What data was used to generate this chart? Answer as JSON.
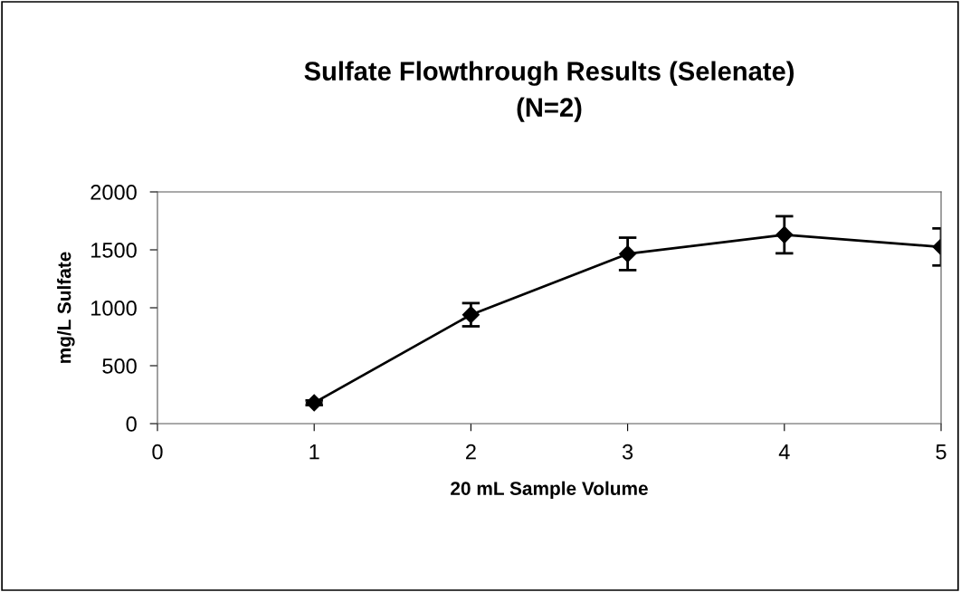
{
  "chart_data": {
    "type": "line",
    "title": "Sulfate Flowthrough Results (Selenate)\n(N=2)",
    "xlabel": "20 mL Sample Volume",
    "ylabel": "mg/L Sulfate",
    "x": [
      1,
      2,
      3,
      4,
      5
    ],
    "series": [
      {
        "color": "#000000",
        "values": [
          180,
          940,
          1465,
          1630,
          1525
        ],
        "errors": [
          20,
          100,
          140,
          160,
          160
        ]
      }
    ],
    "xlim": [
      0,
      5
    ],
    "xticks": [
      0,
      1,
      2,
      3,
      4,
      5
    ],
    "ylim": [
      0,
      2000
    ],
    "yticks": [
      0,
      500,
      1000,
      1500,
      2000
    ],
    "grid": false,
    "marker": "diamond",
    "line_style": "solid"
  }
}
